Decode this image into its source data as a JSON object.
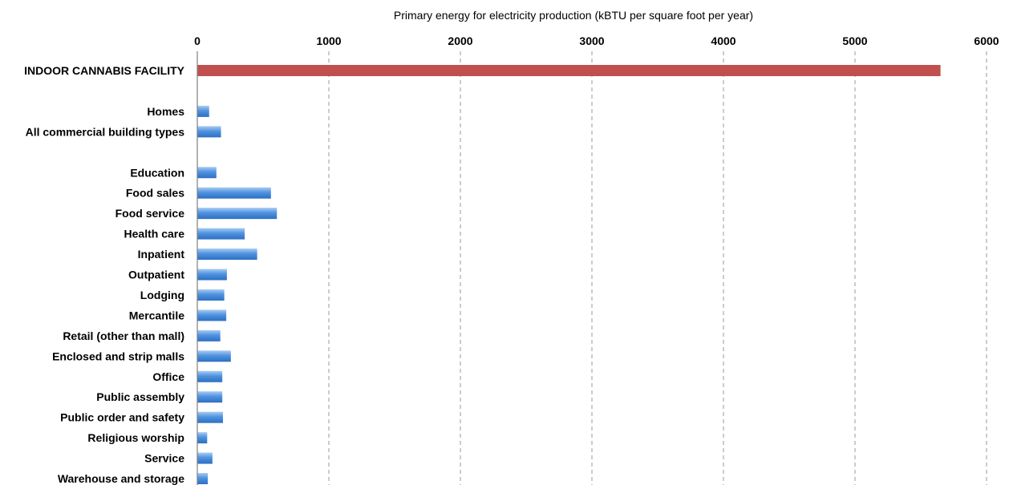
{
  "chart_data": {
    "type": "bar",
    "orientation": "horizontal",
    "title": "",
    "xlabel": "Primary energy for electricity production (kBTU per square foot per year)",
    "ylabel": "",
    "xlim": [
      0,
      6000
    ],
    "xticks": [
      0,
      1000,
      2000,
      3000,
      4000,
      5000,
      6000
    ],
    "x_axis_position": "top",
    "grid": "vertical dashed",
    "categories": [
      "INDOOR CANNABIS FACILITY",
      "",
      "Homes",
      "All commercial building types",
      "",
      "Education",
      "Food sales",
      "Food service",
      "Health care",
      "Inpatient",
      "Outpatient",
      "Lodging",
      "Mercantile",
      "Retail (other than mall)",
      "Enclosed and strip malls",
      "Office",
      "Public assembly",
      "Public order and safety",
      "Religious worship",
      "Service",
      "Warehouse and storage"
    ],
    "values": [
      5650,
      null,
      90,
      180,
      null,
      145,
      560,
      605,
      360,
      455,
      225,
      205,
      220,
      175,
      255,
      190,
      190,
      195,
      75,
      115,
      80
    ],
    "colors": {
      "highlight": "#c0504d",
      "default": "#5b9bd5"
    }
  }
}
